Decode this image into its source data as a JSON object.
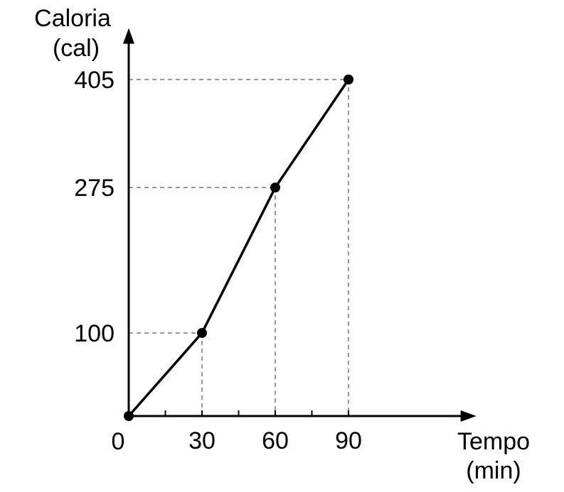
{
  "chart_data": {
    "type": "line",
    "xlabel_line1": "Tempo",
    "xlabel_line2": "(min)",
    "ylabel_line1": "Caloria",
    "ylabel_line2": "(cal)",
    "origin_label": "0",
    "x": [
      0,
      30,
      60,
      90
    ],
    "series": [
      {
        "values": [
          0,
          100,
          275,
          405
        ]
      }
    ],
    "x_tick_labels": [
      "30",
      "60",
      "90"
    ],
    "y_tick_labels": [
      "100",
      "275",
      "405"
    ],
    "xlim": [
      0,
      140
    ],
    "ylim": [
      0,
      460
    ],
    "x_minor_ticks": [
      15,
      45,
      75
    ],
    "guides": true,
    "grid": false,
    "legend": "none"
  }
}
